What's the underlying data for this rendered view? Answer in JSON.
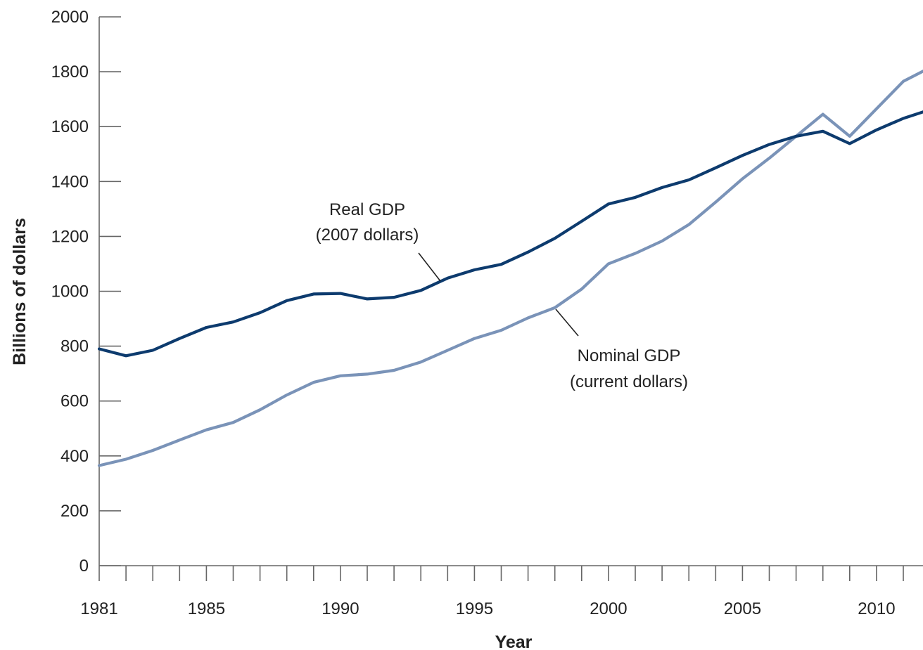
{
  "chart_data": {
    "type": "line",
    "title": "",
    "xlabel": "Year",
    "ylabel": "Billions of dollars",
    "xlim": [
      1981,
      2012
    ],
    "ylim": [
      0,
      2000
    ],
    "y_ticks": [
      0,
      200,
      400,
      600,
      800,
      1000,
      1200,
      1400,
      1600,
      1800,
      2000
    ],
    "x_tick_labels": [
      1981,
      1985,
      1990,
      1995,
      2000,
      2005,
      2010
    ],
    "grid": false,
    "legend": "none",
    "annotations": [
      {
        "series": "Real GDP",
        "lines": [
          "Real GDP",
          "(2007 dollars)"
        ]
      },
      {
        "series": "Nominal GDP",
        "lines": [
          "Nominal GDP",
          "(current dollars)"
        ]
      }
    ],
    "colors": {
      "Real GDP": "#0d3b6e",
      "Nominal GDP": "#7a93b8",
      "axis": "#666666"
    },
    "x": [
      1981,
      1982,
      1983,
      1984,
      1985,
      1986,
      1987,
      1988,
      1989,
      1990,
      1991,
      1992,
      1993,
      1994,
      1995,
      1996,
      1997,
      1998,
      1999,
      2000,
      2001,
      2002,
      2003,
      2004,
      2005,
      2006,
      2007,
      2008,
      2009,
      2010,
      2011,
      2012
    ],
    "series": [
      {
        "name": "Real GDP",
        "values": [
          790,
          765,
          785,
          828,
          868,
          888,
          922,
          966,
          990,
          992,
          972,
          978,
          1003,
          1048,
          1078,
          1098,
          1143,
          1193,
          1255,
          1318,
          1342,
          1378,
          1406,
          1450,
          1495,
          1535,
          1565,
          1583,
          1538,
          1588,
          1630,
          1662
        ]
      },
      {
        "name": "Nominal GDP",
        "values": [
          365,
          388,
          420,
          458,
          495,
          522,
          568,
          622,
          668,
          692,
          698,
          712,
          742,
          785,
          828,
          858,
          903,
          940,
          1008,
          1100,
          1138,
          1183,
          1243,
          1325,
          1410,
          1485,
          1565,
          1645,
          1565,
          1665,
          1765,
          1815
        ]
      }
    ]
  }
}
